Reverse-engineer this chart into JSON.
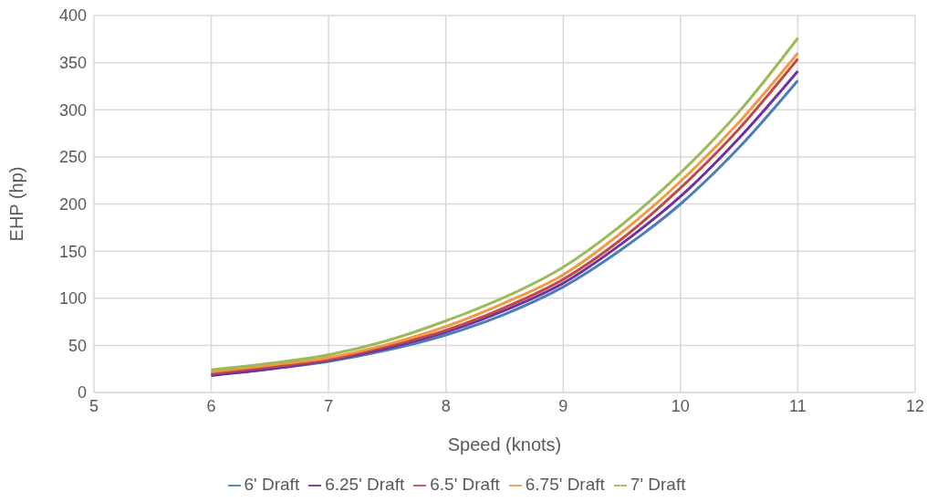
{
  "chart_data": {
    "type": "line",
    "xlabel": "Speed (knots)",
    "ylabel": "EHP (hp)",
    "x": [
      6,
      6.5,
      7,
      7.5,
      8,
      8.5,
      9,
      9.5,
      10,
      10.5,
      11
    ],
    "series": [
      {
        "name": "6' Draft",
        "color": "#4a7ebb",
        "values": [
          19,
          25,
          33,
          45,
          61,
          83,
          112,
          152,
          200,
          260,
          331
        ]
      },
      {
        "name": "6.25' Draft",
        "color": "#7030a0",
        "values": [
          18,
          25,
          34,
          47,
          64,
          87,
          116,
          158,
          208,
          270,
          341
        ]
      },
      {
        "name": "6.5' Draft",
        "color": "#be4b48",
        "values": [
          20,
          27,
          35,
          49,
          66,
          90,
          120,
          163,
          217,
          280,
          354
        ]
      },
      {
        "name": "6.75' Draft",
        "color": "#f79646",
        "values": [
          22,
          29,
          37,
          51,
          70,
          95,
          125,
          170,
          224,
          287,
          360
        ]
      },
      {
        "name": "7' Draft",
        "color": "#9bbb59",
        "values": [
          24,
          31,
          40,
          55,
          76,
          101,
          133,
          178,
          233,
          298,
          376
        ]
      }
    ],
    "xlim": [
      5,
      12
    ],
    "xticks": [
      5,
      6,
      7,
      8,
      9,
      10,
      11,
      12
    ],
    "ylim": [
      0,
      400
    ],
    "yticks": [
      0,
      50,
      100,
      150,
      200,
      250,
      300,
      350,
      400
    ],
    "grid": true,
    "legend": "bottom",
    "marker": "none",
    "line_style": "solid"
  }
}
